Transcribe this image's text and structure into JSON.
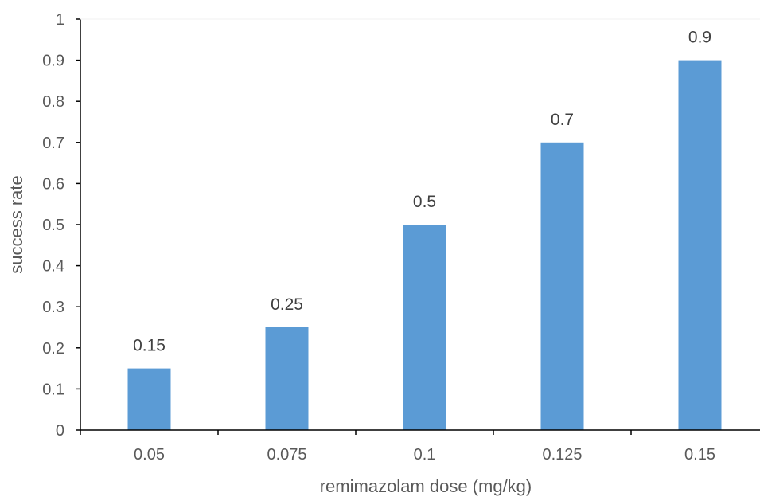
{
  "chart_data": {
    "type": "bar",
    "categories": [
      "0.05",
      "0.075",
      "0.1",
      "0.125",
      "0.15"
    ],
    "values": [
      0.15,
      0.25,
      0.5,
      0.7,
      0.9
    ],
    "data_labels": [
      "0.15",
      "0.25",
      "0.5",
      "0.7",
      "0.9"
    ],
    "xlabel": "remimazolam dose (mg/kg)",
    "ylabel": "success rate",
    "ylim": [
      0,
      1
    ],
    "yticks": [
      0,
      0.1,
      0.2,
      0.3,
      0.4,
      0.5,
      0.6,
      0.7,
      0.8,
      0.9,
      1
    ],
    "ytick_labels": [
      "0",
      "0.1",
      "0.2",
      "0.3",
      "0.4",
      "0.5",
      "0.6",
      "0.7",
      "0.8",
      "0.9",
      "1"
    ],
    "grid": false,
    "legend": "none",
    "bar_color": "#5B9BD5",
    "axis_color": "#000000"
  }
}
